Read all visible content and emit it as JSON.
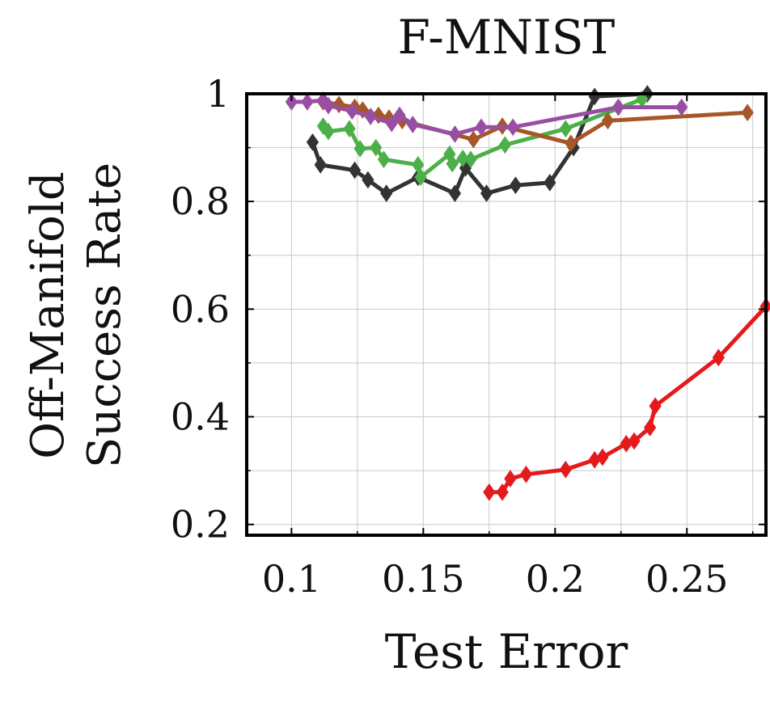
{
  "chart_data": {
    "type": "line",
    "title": "F-MNIST",
    "xlabel": "Test Error",
    "ylabel_lines": [
      "Off-Manifold",
      "Success Rate"
    ],
    "xlim": [
      0.083,
      0.28
    ],
    "ylim": [
      0.18,
      1.0
    ],
    "x_ticks": [
      0.1,
      0.15,
      0.2,
      0.25
    ],
    "x_tick_labels": [
      "0.1",
      "0.15",
      "0.2",
      "0.25"
    ],
    "y_ticks": [
      0.2,
      0.4,
      0.6,
      0.8,
      1.0
    ],
    "y_tick_labels": [
      "0.2",
      "0.4",
      "0.6",
      "0.8",
      "1"
    ],
    "x_minor_ticks": [
      0.125,
      0.175,
      0.225,
      0.275
    ],
    "y_minor_ticks": [
      0.3,
      0.5,
      0.7,
      0.9
    ],
    "grid": true,
    "marker": "diamond",
    "series": [
      {
        "color": "#e41a1c",
        "x": [
          0.175,
          0.18,
          0.183,
          0.189,
          0.204,
          0.215,
          0.218,
          0.227,
          0.23,
          0.236,
          0.238,
          0.262,
          0.28
        ],
        "y": [
          0.26,
          0.26,
          0.285,
          0.293,
          0.302,
          0.32,
          0.325,
          0.35,
          0.355,
          0.38,
          0.42,
          0.51,
          0.605
        ]
      },
      {
        "color": "#333333",
        "x": [
          0.108,
          0.111,
          0.124,
          0.129,
          0.136,
          0.148,
          0.162,
          0.166,
          0.174,
          0.185,
          0.198,
          0.207,
          0.215,
          0.235
        ],
        "y": [
          0.91,
          0.868,
          0.858,
          0.84,
          0.815,
          0.845,
          0.815,
          0.862,
          0.815,
          0.83,
          0.835,
          0.9,
          0.995,
          1.0
        ]
      },
      {
        "color": "#4daf4a",
        "x": [
          0.112,
          0.114,
          0.122,
          0.126,
          0.132,
          0.135,
          0.148,
          0.149,
          0.16,
          0.161,
          0.165,
          0.168,
          0.181,
          0.204,
          0.233
        ],
        "y": [
          0.94,
          0.93,
          0.935,
          0.898,
          0.9,
          0.878,
          0.868,
          0.845,
          0.888,
          0.87,
          0.88,
          0.878,
          0.905,
          0.935,
          0.99
        ]
      },
      {
        "color": "#a65628",
        "x": [
          0.112,
          0.118,
          0.124,
          0.127,
          0.133,
          0.137,
          0.142,
          0.169,
          0.18,
          0.206,
          0.22,
          0.273
        ],
        "y": [
          0.985,
          0.98,
          0.975,
          0.97,
          0.96,
          0.955,
          0.95,
          0.915,
          0.94,
          0.908,
          0.95,
          0.965
        ]
      },
      {
        "color": "#984ea3",
        "x": [
          0.1,
          0.106,
          0.112,
          0.114,
          0.123,
          0.13,
          0.138,
          0.141,
          0.146,
          0.162,
          0.172,
          0.184,
          0.224,
          0.248
        ],
        "y": [
          0.985,
          0.985,
          0.988,
          0.978,
          0.968,
          0.958,
          0.945,
          0.96,
          0.943,
          0.925,
          0.938,
          0.938,
          0.975,
          0.975
        ]
      }
    ]
  }
}
